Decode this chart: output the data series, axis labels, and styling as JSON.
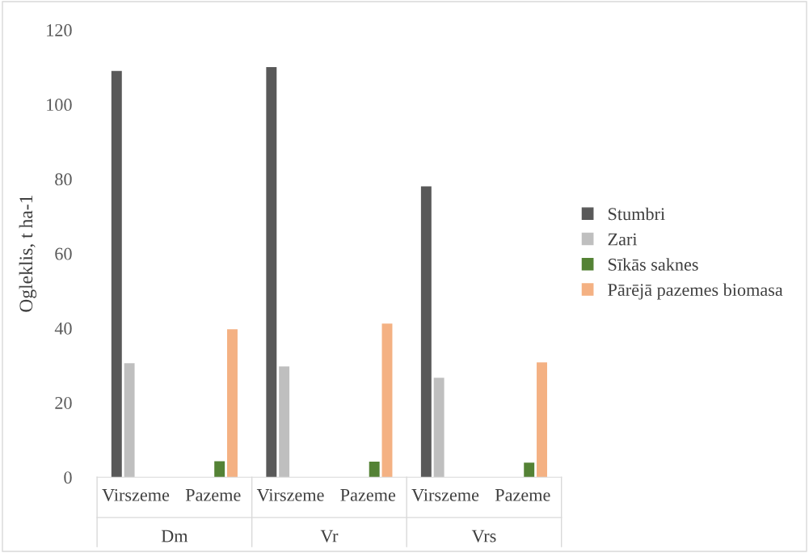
{
  "chart_data": {
    "type": "bar",
    "ylabel": "Ogleklis, t ha-1",
    "categories": [
      "Virszeme",
      "Pazeme",
      "Virszeme",
      "Pazeme",
      "Virszeme",
      "Pazeme"
    ],
    "series": [
      {
        "name": "Stumbri",
        "color": "#595959",
        "values": [
          109,
          null,
          110,
          null,
          78,
          null
        ]
      },
      {
        "name": "Zari",
        "color": "#bfbfbf",
        "values": [
          30.6,
          null,
          29.7,
          null,
          26.7,
          null
        ]
      },
      {
        "name": "Sīkās saknes",
        "color": "#548235",
        "values": [
          null,
          4.3,
          null,
          4.2,
          null,
          3.9
        ]
      },
      {
        "name": "Pārējā pazemes biomasa",
        "color": "#f4b183",
        "values": [
          null,
          39.7,
          null,
          41.2,
          null,
          30.8
        ]
      }
    ],
    "annotations": [
      "Dm",
      "Vr",
      "Vrs"
    ],
    "ylim": [
      0,
      120
    ],
    "yticks": [
      0,
      20,
      40,
      60,
      80,
      100,
      120
    ],
    "grid": false,
    "legend": "right"
  }
}
